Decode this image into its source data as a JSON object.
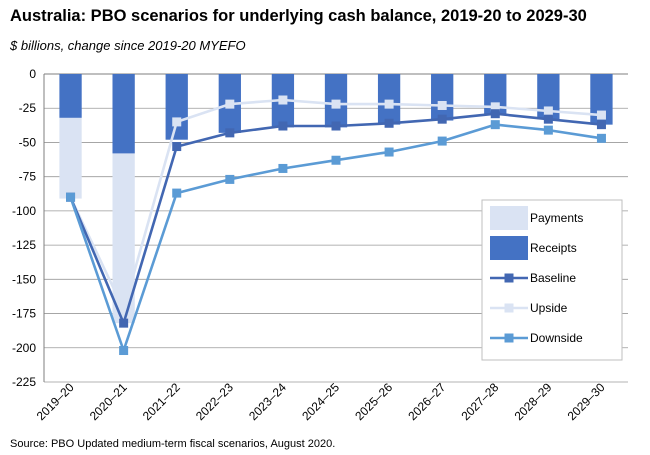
{
  "title": "Australia: PBO scenarios for underlying cash balance, 2019-20 to 2029-30",
  "subtitle": "$ billions, change since 2019-20  MYEFO",
  "source": "Source: PBO Updated medium-term fiscal scenarios, August 2020.",
  "chart_data": {
    "type": "bar",
    "categories": [
      "2019–20",
      "2020–21",
      "2021–22",
      "2022–23",
      "2023–24",
      "2024–25",
      "2025–26",
      "2026–27",
      "2027–28",
      "2028–29",
      "2029–30"
    ],
    "ylim": [
      -225,
      0
    ],
    "yticks": [
      0,
      -25,
      -50,
      -75,
      -100,
      -125,
      -150,
      -175,
      -200,
      -225
    ],
    "grid": true,
    "legend_position": "right-center",
    "stacked_bars": [
      {
        "name": "Receipts",
        "color": "#4472c4",
        "values": [
          -32,
          -58,
          -48,
          -43,
          -39,
          -39,
          -37,
          -34,
          -30,
          -33,
          -37
        ]
      },
      {
        "name": "Payments",
        "color": "#dae3f3",
        "values": [
          -59,
          -124,
          0,
          0,
          0,
          0,
          0,
          0,
          0,
          0,
          0
        ]
      }
    ],
    "series": [
      {
        "name": "Baseline",
        "color": "#4267b2",
        "values": [
          -90,
          -182,
          -53,
          -43,
          -38,
          -38,
          -36,
          -33,
          -29,
          -33,
          -37
        ]
      },
      {
        "name": "Upside",
        "color": "#dae3f3",
        "values": [
          -90,
          -172,
          -35,
          -22,
          -19,
          -22,
          -22,
          -23,
          -24,
          -27,
          -30
        ]
      },
      {
        "name": "Downside",
        "color": "#5b9bd5",
        "values": [
          -90,
          -202,
          -87,
          -77,
          -69,
          -63,
          -57,
          -49,
          -37,
          -41,
          -47
        ]
      }
    ],
    "legend": [
      "Payments",
      "Receipts",
      "Baseline",
      "Upside",
      "Downside"
    ]
  }
}
